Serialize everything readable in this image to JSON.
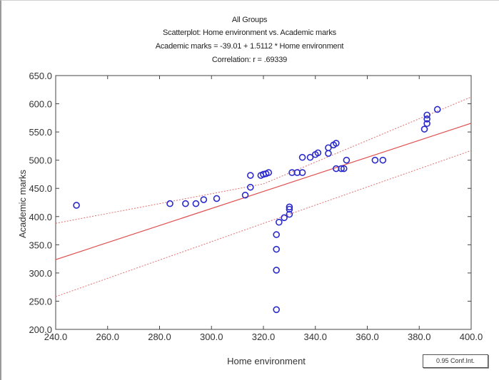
{
  "chart_data": {
    "type": "scatter",
    "title": "All Groups",
    "subtitle": "Scatterplot: Home environment vs. Academic marks",
    "equation": "Academic marks = -39.01 + 1.5112 * Home environment",
    "correlation": "Correlation: r = .69339",
    "xlabel": "Home environment",
    "ylabel": "Academic marks",
    "xlim": [
      240,
      400
    ],
    "ylim": [
      200,
      650
    ],
    "x_ticks": [
      "240.0",
      "260.0",
      "280.0",
      "300.0",
      "320.0",
      "340.0",
      "360.0",
      "380.0",
      "400.0"
    ],
    "y_ticks": [
      "200.0",
      "250.0",
      "300.0",
      "350.0",
      "400.0",
      "450.0",
      "500.0",
      "550.0",
      "600.0",
      "650.0"
    ],
    "x_tick_values": [
      240,
      260,
      280,
      300,
      320,
      340,
      360,
      380,
      400
    ],
    "y_tick_values": [
      200,
      250,
      300,
      350,
      400,
      450,
      500,
      550,
      600,
      650
    ],
    "grid": false,
    "regression": {
      "intercept": -39.01,
      "slope": 1.5112,
      "color": "#e05050"
    },
    "confidence_band": {
      "upper": [
        [
          240,
          388
        ],
        [
          320,
          458
        ],
        [
          400,
          612
        ]
      ],
      "lower": [
        [
          240,
          258
        ],
        [
          320,
          388
        ],
        [
          400,
          517
        ]
      ],
      "color": "#e07070"
    },
    "points": [
      [
        248,
        420
      ],
      [
        284,
        423
      ],
      [
        290,
        423
      ],
      [
        294,
        423
      ],
      [
        297,
        430
      ],
      [
        302,
        432
      ],
      [
        313,
        438
      ],
      [
        315,
        452
      ],
      [
        315,
        473
      ],
      [
        319,
        473
      ],
      [
        320,
        475
      ],
      [
        321,
        476
      ],
      [
        322,
        478
      ],
      [
        325,
        235
      ],
      [
        325,
        305
      ],
      [
        325,
        342
      ],
      [
        325,
        368
      ],
      [
        326,
        390
      ],
      [
        328,
        398
      ],
      [
        330,
        404
      ],
      [
        330,
        413
      ],
      [
        330,
        417
      ],
      [
        331,
        478
      ],
      [
        333,
        478
      ],
      [
        335,
        478
      ],
      [
        335,
        505
      ],
      [
        338,
        505
      ],
      [
        340,
        510
      ],
      [
        341,
        513
      ],
      [
        345,
        512
      ],
      [
        345,
        522
      ],
      [
        347,
        527
      ],
      [
        348,
        530
      ],
      [
        348,
        485
      ],
      [
        350,
        485
      ],
      [
        351,
        485
      ],
      [
        352,
        500
      ],
      [
        363,
        500
      ],
      [
        366,
        500
      ],
      [
        382,
        555
      ],
      [
        383,
        565
      ],
      [
        383,
        573
      ],
      [
        383,
        580
      ],
      [
        387,
        590
      ]
    ],
    "point_color": "#2a2acc",
    "legend": {
      "label": "0.95 Conf.Int.",
      "position": "bottom-right"
    }
  }
}
